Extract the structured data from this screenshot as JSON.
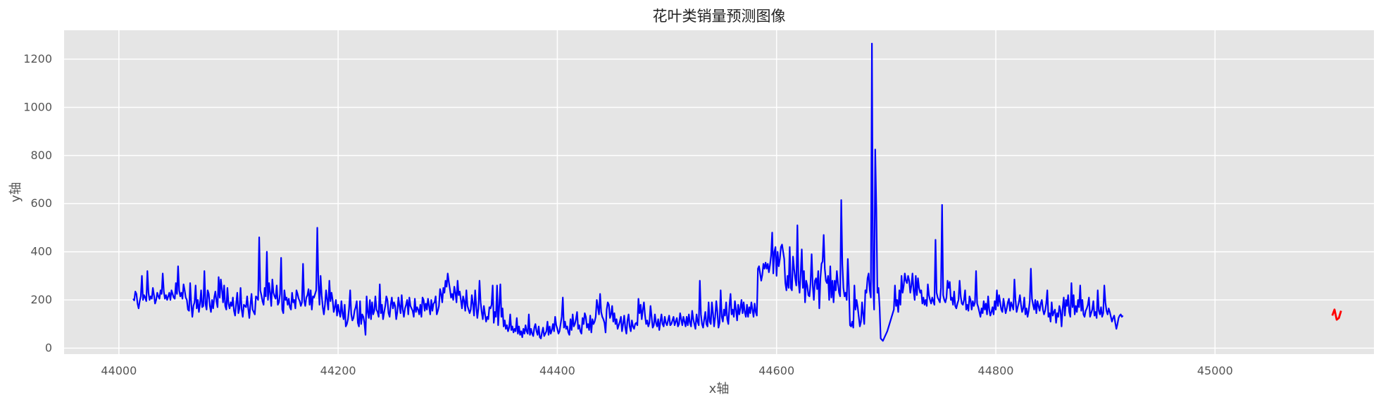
{
  "chart_data": {
    "type": "line",
    "title": "花叶类销量预测图像",
    "xlabel": "x轴",
    "ylabel": "y轴",
    "xlim": [
      43950,
      45145
    ],
    "ylim": [
      -25,
      1320
    ],
    "x_ticks": [
      44000,
      44200,
      44400,
      44600,
      44800,
      45000
    ],
    "y_ticks": [
      0,
      200,
      400,
      600,
      800,
      1000,
      1200
    ],
    "grid": true,
    "background": "#e5e5e5",
    "series": [
      {
        "color": "#0000ff",
        "x_start": 44013,
        "x_step": 1,
        "values": [
          205,
          198,
          235,
          225,
          185,
          165,
          195,
          215,
          300,
          200,
          220,
          210,
          195,
          320,
          230,
          200,
          215,
          205,
          250,
          220,
          185,
          200,
          230,
          215,
          205,
          240,
          225,
          310,
          235,
          205,
          220,
          200,
          215,
          230,
          200,
          240,
          225,
          210,
          205,
          270,
          225,
          340,
          240,
          215,
          230,
          205,
          265,
          240,
          210,
          200,
          160,
          155,
          270,
          185,
          130,
          175,
          190,
          260,
          165,
          200,
          150,
          185,
          240,
          170,
          175,
          320,
          185,
          160,
          240,
          225,
          175,
          150,
          200,
          165,
          210,
          235,
          195,
          170,
          295,
          210,
          285,
          245,
          190,
          260,
          175,
          160,
          250,
          185,
          165,
          190,
          175,
          210,
          155,
          135,
          185,
          230,
          145,
          165,
          250,
          160,
          130,
          180,
          175,
          170,
          215,
          165,
          125,
          180,
          225,
          160,
          150,
          140,
          215,
          210,
          200,
          460,
          240,
          220,
          195,
          180,
          250,
          215,
          400,
          200,
          270,
          230,
          175,
          285,
          230,
          215,
          205,
          260,
          180,
          190,
          225,
          375,
          160,
          145,
          240,
          200,
          210,
          180,
          205,
          170,
          160,
          230,
          190,
          200,
          165,
          240,
          225,
          205,
          195,
          175,
          190,
          350,
          200,
          175,
          210,
          220,
          245,
          180,
          240,
          160,
          215,
          210,
          225,
          240,
          500,
          270,
          180,
          300,
          220,
          170,
          140,
          180,
          240,
          200,
          160,
          280,
          195,
          230,
          200,
          150,
          170,
          200,
          135,
          180,
          150,
          130,
          195,
          145,
          120,
          180,
          90,
          100,
          120,
          165,
          240,
          140,
          115,
          125,
          155,
          170,
          195,
          105,
          90,
          195,
          100,
          140,
          130,
          105,
          55,
          215,
          150,
          125,
          200,
          120,
          190,
          140,
          155,
          215,
          160,
          150,
          130,
          265,
          145,
          180,
          120,
          150,
          175,
          215,
          200,
          145,
          130,
          180,
          210,
          165,
          190,
          175,
          120,
          150,
          210,
          175,
          145,
          220,
          160,
          130,
          165,
          180,
          200,
          140,
          210,
          175,
          165,
          155,
          130,
          205,
          150,
          170,
          160,
          140,
          180,
          130,
          210,
          200,
          155,
          185,
          160,
          205,
          175,
          140,
          200,
          155,
          185,
          190,
          215,
          140,
          155,
          175,
          245,
          225,
          190,
          250,
          230,
          280,
          255,
          310,
          275,
          245,
          210,
          225,
          200,
          255,
          230,
          190,
          280,
          220,
          235,
          200,
          165,
          215,
          195,
          155,
          240,
          175,
          160,
          145,
          160,
          220,
          185,
          135,
          240,
          175,
          125,
          165,
          280,
          190,
          150,
          120,
          175,
          140,
          110,
          130,
          120,
          170,
          165,
          180,
          260,
          105,
          150,
          130,
          260,
          95,
          175,
          265,
          130,
          165,
          90,
          115,
          80,
          95,
          70,
          85,
          140,
          75,
          90,
          65,
          80,
          70,
          125,
          60,
          90,
          55,
          70,
          45,
          80,
          60,
          95,
          70,
          60,
          140,
          55,
          80,
          60,
          50,
          85,
          100,
          70,
          55,
          90,
          45,
          40,
          65,
          85,
          50,
          60,
          70,
          110,
          55,
          90,
          60,
          75,
          100,
          70,
          130,
          95,
          80,
          60,
          70,
          100,
          130,
          210,
          85,
          110,
          80,
          90,
          65,
          55,
          120,
          75,
          140,
          90,
          100,
          120,
          150,
          80,
          95,
          70,
          60,
          125,
          100,
          145,
          130,
          85,
          100,
          75,
          135,
          65,
          120,
          100,
          110,
          130,
          200,
          170,
          140,
          225,
          150,
          130,
          120,
          105,
          65,
          160,
          190,
          180,
          125,
          140,
          175,
          110,
          145,
          100,
          120,
          80,
          95,
          110,
          130,
          70,
          100,
          135,
          85,
          60,
          115,
          140,
          90,
          70,
          115,
          90,
          80,
          100,
          105,
          95,
          205,
          145,
          180,
          120,
          160,
          190,
          135,
          100,
          115,
          90,
          105,
          175,
          130,
          85,
          95,
          140,
          105,
          90,
          120,
          75,
          110,
          140,
          100,
          90,
          130,
          105,
          95,
          115,
          135,
          95,
          100,
          115,
          130,
          95,
          110,
          125,
          90,
          100,
          145,
          120,
          95,
          130,
          110,
          90,
          130,
          95,
          140,
          105,
          90,
          155,
          120,
          100,
          80,
          140,
          110,
          95,
          280,
          140,
          100,
          85,
          120,
          150,
          100,
          90,
          190,
          110,
          100,
          190,
          145,
          90,
          130,
          195,
          150,
          85,
          105,
          240,
          130,
          110,
          160,
          135,
          190,
          120,
          100,
          175,
          225,
          140,
          160,
          130,
          195,
          160,
          115,
          180,
          140,
          165,
          200,
          145,
          190,
          150,
          130,
          180,
          130,
          170,
          145,
          190,
          160,
          130,
          185,
          150,
          135,
          330,
          340,
          310,
          280,
          305,
          350,
          330,
          355,
          330,
          350,
          315,
          345,
          385,
          480,
          310,
          400,
          420,
          300,
          400,
          340,
          370,
          420,
          430,
          400,
          370,
          270,
          240,
          300,
          250,
          420,
          250,
          240,
          380,
          330,
          290,
          260,
          510,
          280,
          230,
          310,
          410,
          250,
          320,
          190,
          280,
          260,
          220,
          215,
          270,
          390,
          260,
          200,
          280,
          290,
          245,
          320,
          165,
          290,
          350,
          360,
          470,
          330,
          280,
          270,
          300,
          200,
          340,
          210,
          280,
          190,
          280,
          240,
          320,
          270,
          230,
          215,
          615,
          350,
          250,
          215,
          230,
          200,
          370,
          250,
          95,
          90,
          110,
          85,
          260,
          160,
          200,
          170,
          130,
          90,
          110,
          190,
          140,
          100,
          240,
          230,
          290,
          310,
          240,
          210,
          1265,
          280,
          160,
          825,
          580,
          230,
          250,
          170,
          40,
          35,
          30,
          40,
          50,
          60,
          70,
          85,
          100,
          115,
          130,
          145,
          160,
          260,
          175,
          200,
          150,
          240,
          180,
          300,
          230,
          260,
          310,
          280,
          270,
          300,
          280,
          230,
          260,
          310,
          240,
          200,
          300,
          220,
          290,
          250,
          230,
          240,
          185,
          210,
          180,
          200,
          175,
          265,
          220,
          200,
          185,
          210,
          195,
          180,
          450,
          230,
          210,
          200,
          190,
          250,
          595,
          220,
          200,
          190,
          210,
          280,
          250,
          275,
          200,
          210,
          180,
          235,
          175,
          165,
          185,
          200,
          280,
          215,
          185,
          180,
          200,
          240,
          160,
          180,
          155,
          215,
          200,
          160,
          195,
          175,
          190,
          320,
          185,
          170,
          150,
          130,
          165,
          145,
          195,
          160,
          185,
          140,
          215,
          160,
          135,
          150,
          170,
          140,
          195,
          160,
          240,
          175,
          220,
          190,
          160,
          150,
          205,
          175,
          145,
          165,
          190,
          205,
          155,
          190,
          175,
          160,
          285,
          200,
          150,
          170,
          190,
          220,
          180,
          150,
          165,
          210,
          140,
          165,
          130,
          155,
          195,
          330,
          205,
          180,
          160,
          200,
          145,
          195,
          175,
          155,
          185,
          200,
          160,
          140,
          155,
          185,
          240,
          130,
          145,
          110,
          190,
          135,
          150,
          160,
          105,
          145,
          130,
          175,
          155,
          90,
          165,
          210,
          135,
          200,
          175,
          220,
          150,
          130,
          270,
          170,
          220,
          140,
          175,
          150,
          200,
          170,
          260,
          155,
          200,
          140,
          130,
          155,
          165,
          180,
          210,
          130,
          145,
          160,
          195,
          135,
          150,
          125,
          240,
          155,
          140,
          170,
          130,
          145,
          260,
          190,
          155,
          140,
          165,
          150,
          130,
          110,
          125,
          135,
          105,
          80,
          100,
          125,
          135,
          140,
          130,
          135
        ]
      },
      {
        "color": "#ff0000",
        "x": [
          45107,
          45109,
          45111,
          45113,
          45115
        ],
        "values": [
          135,
          160,
          118,
          125,
          155
        ]
      }
    ]
  }
}
